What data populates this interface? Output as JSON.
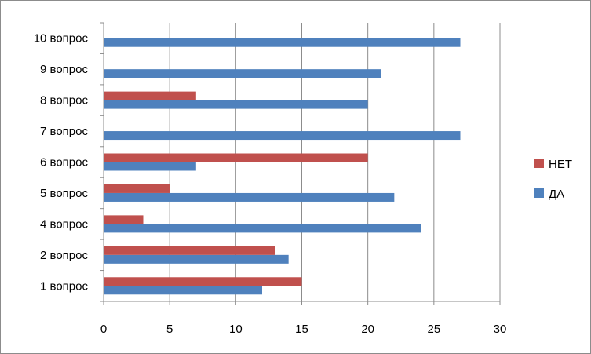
{
  "chart_data": {
    "type": "bar",
    "orientation": "horizontal",
    "categories": [
      "1 вопрос",
      "2 вопрос",
      "4 вопрос",
      "5 вопрос",
      "6 вопрос",
      "7 вопрос",
      "8 вопрос",
      "9 вопрос",
      "10 вопрос"
    ],
    "series": [
      {
        "name": "ДА",
        "color": "#4f81bd",
        "values": [
          12,
          14,
          24,
          22,
          7,
          27,
          20,
          21,
          27
        ]
      },
      {
        "name": "НЕТ",
        "color": "#c0504d",
        "values": [
          15,
          13,
          3,
          5,
          20,
          0,
          7,
          0,
          0
        ]
      }
    ],
    "xlim": [
      0,
      30
    ],
    "xticks": [
      0,
      5,
      10,
      15,
      20,
      25,
      30
    ],
    "grid": "vertical",
    "legend_position": "right",
    "legend_order": [
      "НЕТ",
      "ДА"
    ],
    "title": "",
    "xlabel": "",
    "ylabel": ""
  }
}
